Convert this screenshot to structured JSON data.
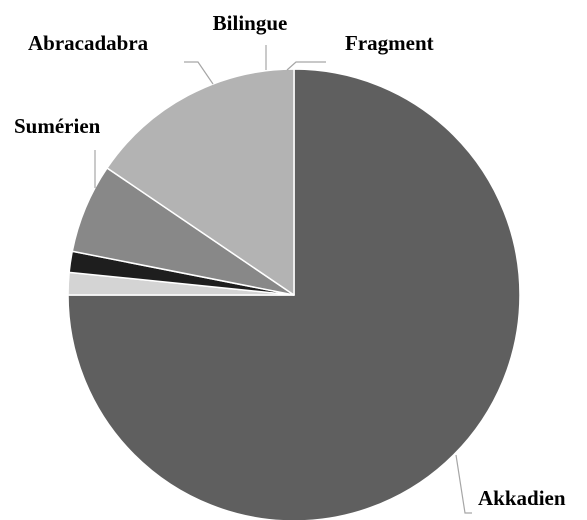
{
  "chart_data": {
    "type": "pie",
    "title": "",
    "categories": [
      "Akkadien",
      "Fragment",
      "Bilingue",
      "Abracadabra",
      "Sumérien"
    ],
    "values": [
      75.0,
      1.6,
      1.5,
      6.4,
      15.5
    ],
    "units": "%",
    "start_angle_deg": 0,
    "direction": "clockwise",
    "legend": "none",
    "labels": "outside-with-leader-lines",
    "colors": {
      "Akkadien": "#5f5f5f",
      "Fragment": "#d4d4d4",
      "Bilingue": "#1e1e1e",
      "Abracadabra": "#888888",
      "Sumérien": "#b3b3b3"
    },
    "leader_color": "#a6a6a6",
    "slice_border_color": "#ffffff"
  }
}
